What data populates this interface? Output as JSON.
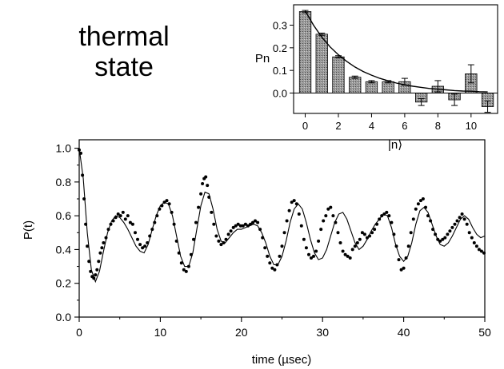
{
  "annotation": [
    "thermal",
    "state"
  ],
  "chart_data": [
    {
      "type": "scatter",
      "xlabel": "time (µsec)",
      "ylabel": "P(t)",
      "xlim": [
        0,
        50
      ],
      "ylim": [
        0,
        1.05
      ],
      "xticks": [
        0,
        10,
        20,
        30,
        40,
        50
      ],
      "yticks": [
        0.0,
        0.2,
        0.4,
        0.6,
        0.8,
        1.0
      ],
      "grid": false,
      "fit_line": {
        "x": [
          0,
          0.5,
          1,
          1.5,
          2,
          2.5,
          3,
          3.5,
          4,
          4.5,
          5,
          5.5,
          6,
          6.5,
          7,
          7.5,
          8,
          8.5,
          9,
          9.5,
          10,
          10.5,
          11,
          11.5,
          12,
          12.5,
          13,
          13.5,
          14,
          14.5,
          15,
          15.5,
          16,
          16.5,
          17,
          17.5,
          18,
          18.5,
          19,
          19.5,
          20,
          20.5,
          21,
          21.5,
          22,
          22.5,
          23,
          23.5,
          24,
          24.5,
          25,
          25.5,
          26,
          26.5,
          27,
          27.5,
          28,
          28.5,
          29,
          29.5,
          30,
          30.5,
          31,
          31.5,
          32,
          32.5,
          33,
          33.5,
          34,
          34.5,
          35,
          35.5,
          36,
          36.5,
          37,
          37.5,
          38,
          38.5,
          39,
          39.5,
          40,
          40.5,
          41,
          41.5,
          42,
          42.5,
          43,
          43.5,
          44,
          44.5,
          45,
          45.5,
          46,
          46.5,
          47,
          47.5,
          48,
          48.5,
          49,
          49.5,
          50
        ],
        "y": [
          1.0,
          0.82,
          0.5,
          0.28,
          0.21,
          0.27,
          0.39,
          0.5,
          0.57,
          0.6,
          0.59,
          0.56,
          0.52,
          0.47,
          0.42,
          0.39,
          0.38,
          0.43,
          0.52,
          0.6,
          0.66,
          0.68,
          0.67,
          0.6,
          0.48,
          0.36,
          0.3,
          0.3,
          0.38,
          0.52,
          0.66,
          0.74,
          0.73,
          0.64,
          0.52,
          0.45,
          0.44,
          0.47,
          0.5,
          0.52,
          0.52,
          0.53,
          0.54,
          0.55,
          0.54,
          0.5,
          0.44,
          0.36,
          0.31,
          0.31,
          0.36,
          0.45,
          0.56,
          0.64,
          0.67,
          0.64,
          0.56,
          0.46,
          0.38,
          0.34,
          0.35,
          0.4,
          0.48,
          0.56,
          0.61,
          0.62,
          0.58,
          0.51,
          0.44,
          0.4,
          0.42,
          0.46,
          0.51,
          0.55,
          0.58,
          0.61,
          0.6,
          0.53,
          0.43,
          0.36,
          0.33,
          0.36,
          0.44,
          0.55,
          0.63,
          0.65,
          0.62,
          0.55,
          0.48,
          0.43,
          0.42,
          0.44,
          0.48,
          0.53,
          0.58,
          0.6,
          0.58,
          0.53,
          0.49,
          0.47,
          0.48
        ]
      },
      "points": {
        "x": [
          0,
          0.2,
          0.4,
          0.6,
          0.8,
          1,
          1.2,
          1.4,
          1.6,
          1.8,
          2,
          2.2,
          2.4,
          2.6,
          2.8,
          3,
          3.3,
          3.6,
          3.9,
          4.2,
          4.5,
          4.8,
          5.1,
          5.4,
          5.7,
          6,
          6.3,
          6.6,
          6.9,
          7.2,
          7.5,
          7.8,
          8.1,
          8.4,
          8.7,
          9,
          9.3,
          9.6,
          9.9,
          10.2,
          10.5,
          10.8,
          11.1,
          11.4,
          11.7,
          12,
          12.3,
          12.6,
          12.9,
          13.2,
          13.5,
          13.8,
          14.1,
          14.4,
          14.7,
          15,
          15.2,
          15.4,
          15.6,
          15.8,
          16,
          16.3,
          16.6,
          16.9,
          17.2,
          17.5,
          17.8,
          18.1,
          18.4,
          18.7,
          19,
          19.3,
          19.6,
          19.9,
          20.2,
          20.5,
          20.8,
          21.1,
          21.4,
          21.7,
          22,
          22.3,
          22.6,
          22.9,
          23.2,
          23.5,
          23.8,
          24.1,
          24.4,
          24.7,
          25,
          25.3,
          25.6,
          25.9,
          26.2,
          26.5,
          26.8,
          27.1,
          27.4,
          27.7,
          28,
          28.3,
          28.6,
          28.9,
          29.2,
          29.5,
          29.8,
          30.1,
          30.4,
          30.7,
          31,
          31.3,
          31.6,
          31.9,
          32.2,
          32.5,
          32.8,
          33.1,
          33.4,
          33.7,
          34,
          34.3,
          34.6,
          34.9,
          35.2,
          35.5,
          35.8,
          36.1,
          36.4,
          36.7,
          37,
          37.3,
          37.6,
          37.9,
          38.2,
          38.5,
          38.8,
          39.1,
          39.4,
          39.7,
          40,
          40.3,
          40.6,
          40.9,
          41.2,
          41.5,
          41.8,
          42.1,
          42.4,
          42.7,
          43,
          43.3,
          43.6,
          43.9,
          44.2,
          44.5,
          44.8,
          45.1,
          45.4,
          45.7,
          46,
          46.3,
          46.6,
          46.9,
          47.2,
          47.5,
          47.8,
          48.1,
          48.4,
          48.7,
          49,
          49.3,
          49.6,
          49.9
        ],
        "y": [
          0.99,
          0.97,
          0.84,
          0.7,
          0.55,
          0.42,
          0.33,
          0.27,
          0.24,
          0.23,
          0.25,
          0.28,
          0.33,
          0.38,
          0.41,
          0.44,
          0.47,
          0.52,
          0.55,
          0.57,
          0.59,
          0.61,
          0.6,
          0.62,
          0.58,
          0.6,
          0.56,
          0.55,
          0.5,
          0.46,
          0.43,
          0.41,
          0.42,
          0.44,
          0.48,
          0.52,
          0.56,
          0.6,
          0.64,
          0.66,
          0.68,
          0.69,
          0.67,
          0.62,
          0.55,
          0.45,
          0.38,
          0.32,
          0.28,
          0.27,
          0.3,
          0.37,
          0.46,
          0.56,
          0.65,
          0.73,
          0.79,
          0.82,
          0.83,
          0.78,
          0.71,
          0.62,
          0.55,
          0.48,
          0.45,
          0.43,
          0.44,
          0.46,
          0.49,
          0.51,
          0.53,
          0.54,
          0.55,
          0.54,
          0.54,
          0.55,
          0.54,
          0.55,
          0.56,
          0.57,
          0.56,
          0.52,
          0.47,
          0.41,
          0.36,
          0.32,
          0.29,
          0.28,
          0.31,
          0.36,
          0.42,
          0.5,
          0.57,
          0.63,
          0.68,
          0.69,
          0.67,
          0.61,
          0.54,
          0.46,
          0.41,
          0.37,
          0.35,
          0.36,
          0.39,
          0.45,
          0.52,
          0.57,
          0.6,
          0.64,
          0.65,
          0.6,
          0.56,
          0.5,
          0.44,
          0.39,
          0.37,
          0.36,
          0.35,
          0.4,
          0.42,
          0.44,
          0.46,
          0.5,
          0.49,
          0.47,
          0.48,
          0.5,
          0.52,
          0.55,
          0.58,
          0.6,
          0.61,
          0.62,
          0.6,
          0.56,
          0.49,
          0.42,
          0.34,
          0.28,
          0.29,
          0.35,
          0.42,
          0.5,
          0.58,
          0.64,
          0.67,
          0.69,
          0.7,
          0.65,
          0.6,
          0.57,
          0.52,
          0.49,
          0.46,
          0.45,
          0.46,
          0.47,
          0.49,
          0.51,
          0.53,
          0.55,
          0.57,
          0.59,
          0.61,
          0.58,
          0.55,
          0.5,
          0.47,
          0.44,
          0.42,
          0.4,
          0.39,
          0.38
        ]
      }
    },
    {
      "type": "bar",
      "xlabel": "|n⟩",
      "ylabel": "Pn",
      "categories": [
        0,
        1,
        2,
        3,
        4,
        5,
        6,
        7,
        8,
        9,
        10,
        11
      ],
      "values": [
        0.36,
        0.26,
        0.16,
        0.07,
        0.05,
        0.05,
        0.05,
        -0.04,
        0.03,
        -0.03,
        0.085,
        -0.06
      ],
      "errors": [
        0.005,
        0.005,
        0.005,
        0.005,
        0.005,
        0.005,
        0.015,
        0.015,
        0.025,
        0.025,
        0.04,
        0.025
      ],
      "xlim": [
        -0.7,
        11.6
      ],
      "ylim": [
        -0.09,
        0.39
      ],
      "xticks": [
        0,
        2,
        4,
        6,
        8,
        10
      ],
      "yticks": [
        0.0,
        0.1,
        0.2,
        0.3
      ],
      "fit_curve": {
        "x": [
          0,
          0.5,
          1,
          1.5,
          2,
          2.5,
          3,
          3.5,
          4,
          4.5,
          5,
          5.5,
          6,
          6.5,
          7,
          7.5,
          8,
          8.5,
          9,
          9.5,
          10,
          10.5,
          11
        ],
        "y": [
          0.363,
          0.3,
          0.247,
          0.204,
          0.169,
          0.14,
          0.115,
          0.095,
          0.079,
          0.065,
          0.054,
          0.044,
          0.036,
          0.03,
          0.025,
          0.02,
          0.017,
          0.014,
          0.011,
          0.009,
          0.008,
          0.006,
          0.005
        ]
      }
    }
  ]
}
